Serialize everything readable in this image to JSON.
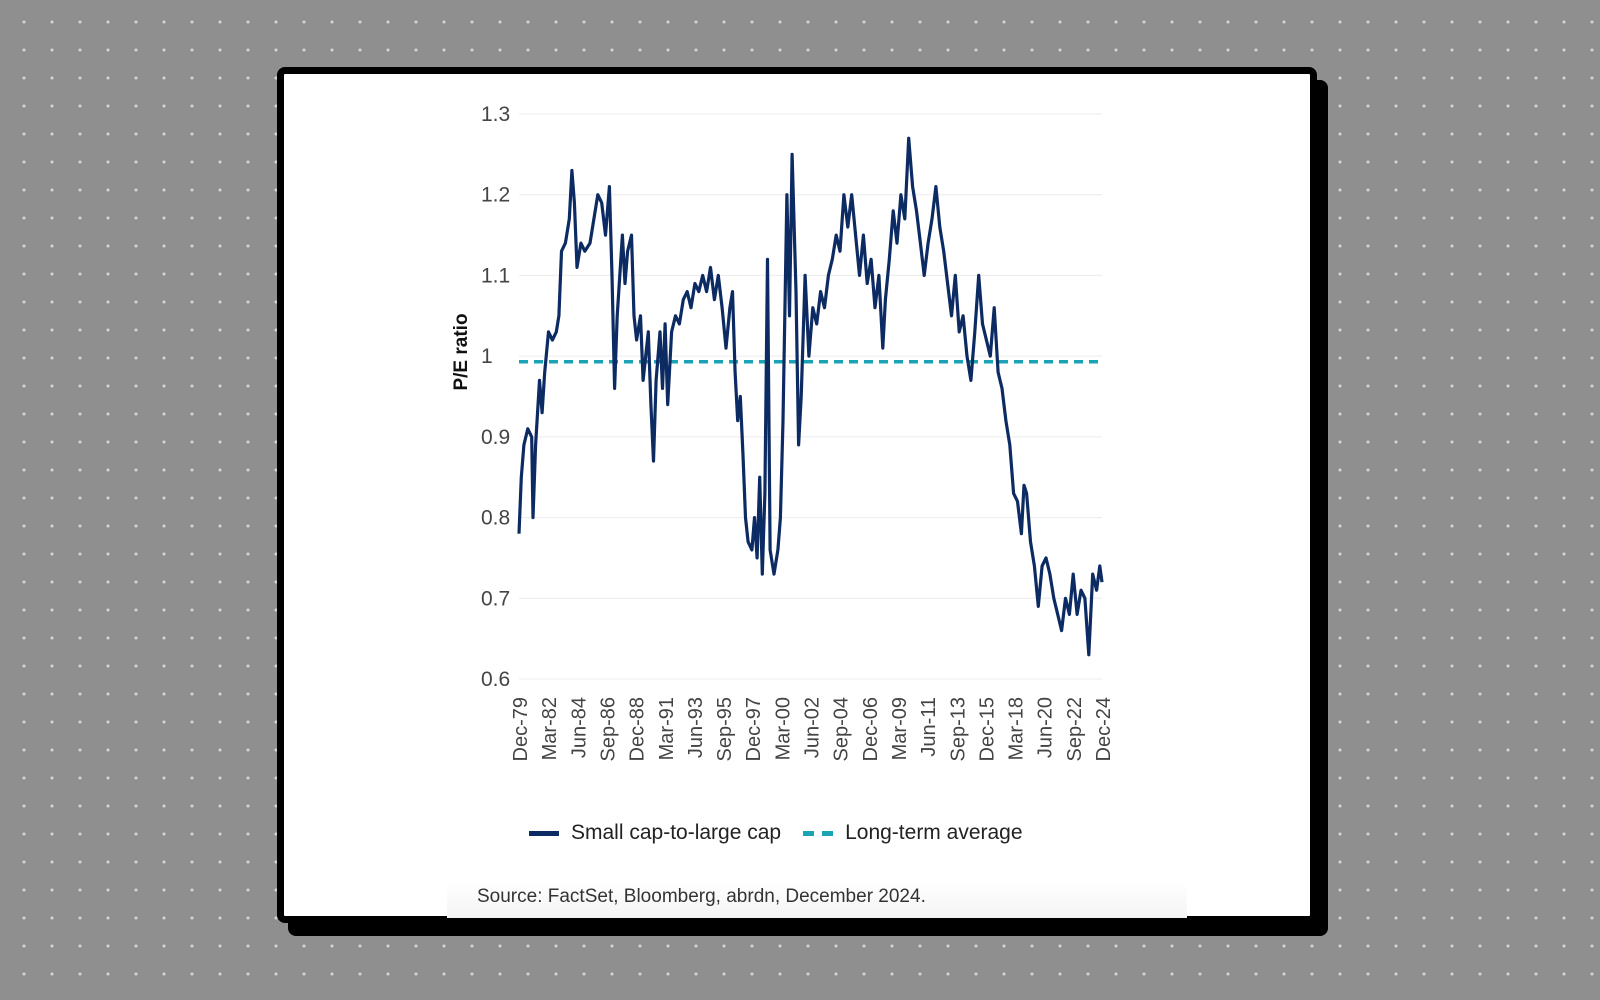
{
  "chart_data": {
    "type": "line",
    "ylabel": "P/E ratio",
    "xlabel": "",
    "ylim": [
      0.6,
      1.3
    ],
    "yticks": [
      "0.6",
      "0.7",
      "0.8",
      "0.9",
      "1",
      "1.1",
      "1.2",
      "1.3"
    ],
    "ytick_values": [
      0.6,
      0.7,
      0.8,
      0.9,
      1.0,
      1.1,
      1.2,
      1.3
    ],
    "categories": [
      "Dec-79",
      "Mar-82",
      "Jun-84",
      "Sep-86",
      "Dec-88",
      "Mar-91",
      "Jun-93",
      "Sep-95",
      "Dec-97",
      "Mar-00",
      "Jun-02",
      "Sep-04",
      "Dec-06",
      "Mar-09",
      "Jun-11",
      "Sep-13",
      "Dec-15",
      "Mar-18",
      "Jun-20",
      "Sep-22",
      "Dec-24"
    ],
    "x_range": [
      1979.92,
      2024.92
    ],
    "grid": true,
    "legend_position": "bottom",
    "series": [
      {
        "name": "Small cap-to-large cap",
        "color": "#0d2b63",
        "style": "solid",
        "points": [
          [
            1979.92,
            0.78
          ],
          [
            1980.1,
            0.85
          ],
          [
            1980.3,
            0.89
          ],
          [
            1980.6,
            0.91
          ],
          [
            1980.9,
            0.9
          ],
          [
            1981.0,
            0.8
          ],
          [
            1981.2,
            0.89
          ],
          [
            1981.5,
            0.97
          ],
          [
            1981.7,
            0.93
          ],
          [
            1981.9,
            0.98
          ],
          [
            1982.2,
            1.03
          ],
          [
            1982.5,
            1.02
          ],
          [
            1982.8,
            1.03
          ],
          [
            1983.0,
            1.05
          ],
          [
            1983.2,
            1.13
          ],
          [
            1983.5,
            1.14
          ],
          [
            1983.8,
            1.17
          ],
          [
            1984.0,
            1.23
          ],
          [
            1984.2,
            1.19
          ],
          [
            1984.4,
            1.11
          ],
          [
            1984.7,
            1.14
          ],
          [
            1985.0,
            1.13
          ],
          [
            1985.4,
            1.14
          ],
          [
            1985.7,
            1.17
          ],
          [
            1986.0,
            1.2
          ],
          [
            1986.3,
            1.19
          ],
          [
            1986.6,
            1.15
          ],
          [
            1986.9,
            1.21
          ],
          [
            1987.1,
            1.1
          ],
          [
            1987.3,
            0.96
          ],
          [
            1987.5,
            1.05
          ],
          [
            1987.7,
            1.1
          ],
          [
            1987.9,
            1.15
          ],
          [
            1988.1,
            1.09
          ],
          [
            1988.3,
            1.13
          ],
          [
            1988.6,
            1.15
          ],
          [
            1988.8,
            1.05
          ],
          [
            1989.0,
            1.02
          ],
          [
            1989.3,
            1.05
          ],
          [
            1989.5,
            0.97
          ],
          [
            1989.7,
            1.0
          ],
          [
            1989.9,
            1.03
          ],
          [
            1990.1,
            0.94
          ],
          [
            1990.3,
            0.87
          ],
          [
            1990.5,
            0.97
          ],
          [
            1990.8,
            1.03
          ],
          [
            1991.0,
            0.96
          ],
          [
            1991.2,
            1.04
          ],
          [
            1991.4,
            0.94
          ],
          [
            1991.7,
            1.03
          ],
          [
            1992.0,
            1.05
          ],
          [
            1992.3,
            1.04
          ],
          [
            1992.6,
            1.07
          ],
          [
            1992.9,
            1.08
          ],
          [
            1993.2,
            1.06
          ],
          [
            1993.5,
            1.09
          ],
          [
            1993.8,
            1.08
          ],
          [
            1994.1,
            1.1
          ],
          [
            1994.4,
            1.08
          ],
          [
            1994.7,
            1.11
          ],
          [
            1995.0,
            1.07
          ],
          [
            1995.3,
            1.1
          ],
          [
            1995.6,
            1.06
          ],
          [
            1995.9,
            1.01
          ],
          [
            1996.2,
            1.06
          ],
          [
            1996.4,
            1.08
          ],
          [
            1996.6,
            0.98
          ],
          [
            1996.8,
            0.92
          ],
          [
            1997.0,
            0.95
          ],
          [
            1997.2,
            0.88
          ],
          [
            1997.4,
            0.8
          ],
          [
            1997.6,
            0.77
          ],
          [
            1997.9,
            0.76
          ],
          [
            1998.1,
            0.8
          ],
          [
            1998.3,
            0.75
          ],
          [
            1998.5,
            0.85
          ],
          [
            1998.7,
            0.73
          ],
          [
            1998.9,
            0.83
          ],
          [
            1999.1,
            1.12
          ],
          [
            1999.3,
            0.76
          ],
          [
            1999.6,
            0.73
          ],
          [
            1999.9,
            0.76
          ],
          [
            2000.1,
            0.8
          ],
          [
            2000.3,
            0.92
          ],
          [
            2000.6,
            1.2
          ],
          [
            2000.8,
            1.05
          ],
          [
            2001.0,
            1.25
          ],
          [
            2001.3,
            1.08
          ],
          [
            2001.5,
            0.89
          ],
          [
            2001.7,
            0.95
          ],
          [
            2002.0,
            1.1
          ],
          [
            2002.3,
            1.0
          ],
          [
            2002.6,
            1.06
          ],
          [
            2002.9,
            1.04
          ],
          [
            2003.2,
            1.08
          ],
          [
            2003.5,
            1.06
          ],
          [
            2003.8,
            1.1
          ],
          [
            2004.1,
            1.12
          ],
          [
            2004.4,
            1.15
          ],
          [
            2004.7,
            1.13
          ],
          [
            2005.0,
            1.2
          ],
          [
            2005.3,
            1.16
          ],
          [
            2005.6,
            1.2
          ],
          [
            2005.9,
            1.15
          ],
          [
            2006.2,
            1.1
          ],
          [
            2006.5,
            1.15
          ],
          [
            2006.8,
            1.09
          ],
          [
            2007.1,
            1.12
          ],
          [
            2007.4,
            1.06
          ],
          [
            2007.7,
            1.1
          ],
          [
            2008.0,
            1.01
          ],
          [
            2008.2,
            1.07
          ],
          [
            2008.5,
            1.12
          ],
          [
            2008.8,
            1.18
          ],
          [
            2009.1,
            1.14
          ],
          [
            2009.4,
            1.2
          ],
          [
            2009.7,
            1.17
          ],
          [
            2010.0,
            1.27
          ],
          [
            2010.3,
            1.21
          ],
          [
            2010.6,
            1.18
          ],
          [
            2010.9,
            1.14
          ],
          [
            2011.2,
            1.1
          ],
          [
            2011.5,
            1.14
          ],
          [
            2011.8,
            1.17
          ],
          [
            2012.1,
            1.21
          ],
          [
            2012.4,
            1.16
          ],
          [
            2012.7,
            1.13
          ],
          [
            2013.0,
            1.09
          ],
          [
            2013.3,
            1.05
          ],
          [
            2013.6,
            1.1
          ],
          [
            2013.9,
            1.03
          ],
          [
            2014.2,
            1.05
          ],
          [
            2014.5,
            1.0
          ],
          [
            2014.8,
            0.97
          ],
          [
            2015.1,
            1.03
          ],
          [
            2015.4,
            1.1
          ],
          [
            2015.7,
            1.04
          ],
          [
            2016.0,
            1.02
          ],
          [
            2016.3,
            1.0
          ],
          [
            2016.6,
            1.06
          ],
          [
            2016.9,
            0.98
          ],
          [
            2017.2,
            0.96
          ],
          [
            2017.5,
            0.92
          ],
          [
            2017.8,
            0.89
          ],
          [
            2018.1,
            0.83
          ],
          [
            2018.4,
            0.82
          ],
          [
            2018.7,
            0.78
          ],
          [
            2018.9,
            0.84
          ],
          [
            2019.1,
            0.83
          ],
          [
            2019.4,
            0.77
          ],
          [
            2019.7,
            0.74
          ],
          [
            2020.0,
            0.69
          ],
          [
            2020.3,
            0.74
          ],
          [
            2020.6,
            0.75
          ],
          [
            2020.9,
            0.73
          ],
          [
            2021.2,
            0.7
          ],
          [
            2021.5,
            0.68
          ],
          [
            2021.8,
            0.66
          ],
          [
            2022.1,
            0.7
          ],
          [
            2022.4,
            0.68
          ],
          [
            2022.7,
            0.73
          ],
          [
            2023.0,
            0.68
          ],
          [
            2023.3,
            0.71
          ],
          [
            2023.6,
            0.7
          ],
          [
            2023.9,
            0.63
          ],
          [
            2024.2,
            0.73
          ],
          [
            2024.5,
            0.71
          ],
          [
            2024.75,
            0.74
          ],
          [
            2024.92,
            0.72
          ]
        ]
      },
      {
        "name": "Long-term average",
        "color": "#1aa3b5",
        "style": "dashed",
        "value": 0.993
      }
    ],
    "source": "Source: FactSet, Bloomberg, abrdn, December 2024."
  }
}
